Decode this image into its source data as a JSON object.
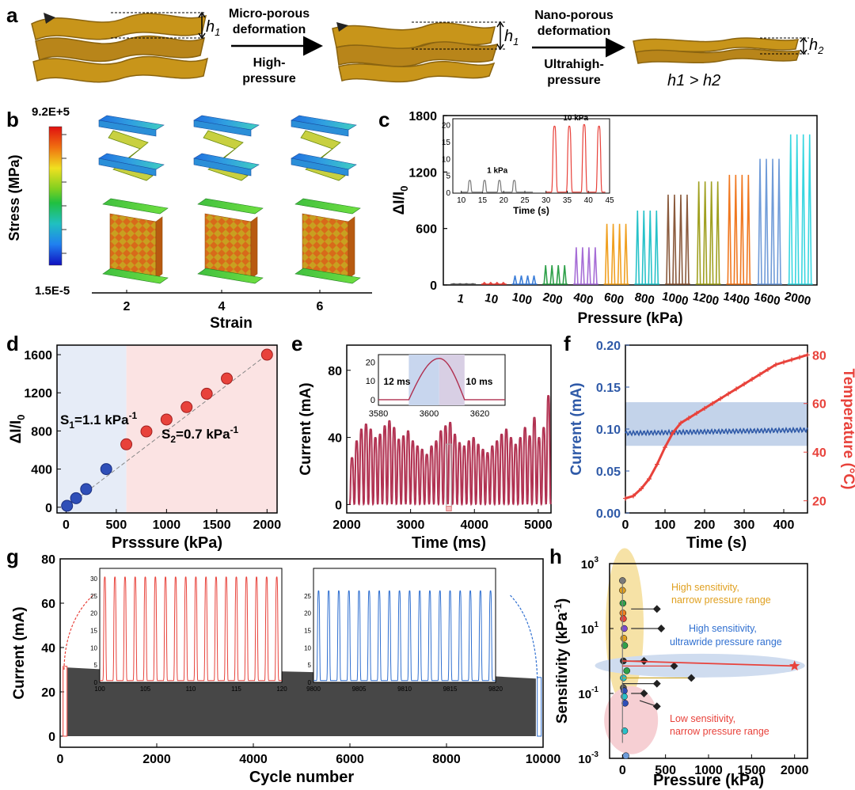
{
  "panel_letters": [
    "a",
    "b",
    "c",
    "d",
    "e",
    "f",
    "g",
    "h"
  ],
  "panel_a": {
    "arrow1_top": "Micro-porous",
    "arrow1_mid": "deformation",
    "arrow1_bottom1": "High-",
    "arrow1_bottom2": "pressure",
    "arrow2_top": "Nano-porous",
    "arrow2_mid": "deformation",
    "arrow2_bottom1": "Ultrahigh-",
    "arrow2_bottom2": "pressure",
    "h1": "h",
    "h1_sub": "1",
    "h2_sub": "2",
    "relation": "h1 > h2",
    "colors": {
      "foam": "#c8951a",
      "foam_dark": "#8a6410"
    }
  },
  "panel_b": {
    "colorbar_max": "9.2E+5",
    "colorbar_min": "1.5E-5",
    "colorbar_label": "Stress (MPa)",
    "strain_ticks": [
      "2",
      "4",
      "6"
    ],
    "xlabel": "Strain"
  },
  "chart_data": [
    {
      "id": "c",
      "type": "bar",
      "title": "",
      "xlabel": "Pressure (kPa)",
      "ylabel": "ΔI/I0",
      "ylim": [
        0,
        1800
      ],
      "yticks": [
        0,
        600,
        1200,
        1800
      ],
      "categories": [
        "1",
        "10",
        "100",
        "200",
        "400",
        "600",
        "800",
        "1000",
        "1200",
        "1400",
        "1600",
        "2000"
      ],
      "values": [
        13,
        25,
        100,
        210,
        400,
        650,
        790,
        960,
        1100,
        1170,
        1340,
        1600
      ],
      "series_colors": [
        "#555555",
        "#e8423b",
        "#3d7fd9",
        "#2fa14a",
        "#a66dd6",
        "#f0a020",
        "#27c2c9",
        "#8a5a3c",
        "#a0a020",
        "#f07820",
        "#6f9bd8",
        "#38d6e0"
      ],
      "inset": {
        "xlabel": "Time (s)",
        "xlim": [
          8,
          45
        ],
        "ylim": [
          0,
          22
        ],
        "xticks": [
          10,
          15,
          20,
          25,
          30,
          35,
          40,
          45
        ],
        "yticks": [
          0,
          5,
          10,
          15,
          20
        ],
        "label_1kpa": "1 kPa",
        "label_10kpa": "10 kPa",
        "peaks_1kpa": [
          12,
          15.5,
          19,
          22.5
        ],
        "peak_value_1kpa": 3.5,
        "peaks_10kpa": [
          32,
          35.5,
          39,
          42.5
        ],
        "peak_values_10kpa": [
          19.5,
          19.5,
          20,
          19.5
        ]
      }
    },
    {
      "id": "d",
      "type": "scatter",
      "xlabel": "Prsssure (kPa)",
      "ylabel": "ΔI/I0",
      "xlim": [
        -90,
        2100
      ],
      "ylim": [
        -60,
        1700
      ],
      "xticks": [
        0,
        500,
        1000,
        1500,
        2000
      ],
      "yticks": [
        0,
        400,
        800,
        1200,
        1600
      ],
      "low_region_end": 600,
      "low_points": {
        "x": [
          10,
          100,
          200,
          400
        ],
        "y": [
          15,
          95,
          190,
          400
        ]
      },
      "high_points": {
        "x": [
          600,
          800,
          1000,
          1200,
          1400,
          1600,
          2000
        ],
        "y": [
          660,
          795,
          920,
          1050,
          1190,
          1350,
          1600
        ]
      },
      "s1_text": "S",
      "s1_sub": "1",
      "s1_value": "=1.1 kPa",
      "s1_sup": "-1",
      "s2_text": "S",
      "s2_sub": "2",
      "s2_value": "=0.7 kPa",
      "s2_sup": "-1"
    },
    {
      "id": "e",
      "type": "line",
      "xlabel": "Time (ms)",
      "ylabel": "Current (mA)",
      "xlim": [
        2000,
        5200
      ],
      "ylim": [
        -5,
        95
      ],
      "xticks": [
        2000,
        3000,
        4000,
        5000
      ],
      "yticks": [
        0,
        40,
        80
      ],
      "pulse_heights": [
        28,
        38,
        45,
        48,
        45,
        40,
        42,
        47,
        50,
        46,
        39,
        41,
        44,
        38,
        35,
        33,
        30,
        35,
        38,
        44,
        47,
        49,
        42,
        37,
        35,
        38,
        40,
        36,
        33,
        31,
        35,
        38,
        42,
        45,
        40,
        36,
        40,
        46,
        41,
        52,
        40,
        46,
        65
      ],
      "inset": {
        "xlim": [
          3580,
          3630
        ],
        "ylim": [
          -3,
          24
        ],
        "xticks": [
          3580,
          3600,
          3620
        ],
        "yticks": [
          0,
          10,
          20
        ],
        "rise_label": "12 ms",
        "fall_label": "10 ms"
      }
    },
    {
      "id": "f",
      "type": "line",
      "xlabel": "Time (s)",
      "ylabel_left": "Current (mA)",
      "ylabel_right": "Temperature (°C)",
      "xlim": [
        0,
        460
      ],
      "ylim_left": [
        0,
        0.2
      ],
      "ylim_right": [
        15,
        84
      ],
      "xticks": [
        0,
        100,
        200,
        300,
        400
      ],
      "yticks_left": [
        0.0,
        0.05,
        0.1,
        0.15,
        0.2
      ],
      "yticks_left_labels": [
        "0.00",
        "0.05",
        "0.10",
        "0.15",
        "0.20"
      ],
      "yticks_right": [
        20,
        40,
        60,
        80
      ],
      "current_band": [
        0.08,
        0.132
      ],
      "current_level": 0.095,
      "temperature_curve": {
        "x": [
          0,
          20,
          40,
          60,
          80,
          100,
          120,
          140,
          160,
          180,
          200,
          220,
          240,
          260,
          280,
          300,
          320,
          340,
          360,
          380,
          400,
          420,
          440,
          460
        ],
        "y": [
          21,
          22,
          25,
          29,
          35,
          42,
          48,
          52,
          54,
          56,
          58,
          60,
          62,
          64,
          66,
          68,
          70,
          72,
          74,
          76,
          77,
          78,
          79,
          80
        ]
      },
      "left_color": "#2f5aa8",
      "right_color": "#e8423b"
    },
    {
      "id": "g",
      "type": "area",
      "xlabel": "Cycle number",
      "ylabel": "Current (mA)",
      "xlim": [
        0,
        10000
      ],
      "ylim": [
        -5,
        80
      ],
      "xticks": [
        0,
        2000,
        4000,
        6000,
        8000,
        10000
      ],
      "yticks": [
        0,
        20,
        40,
        60,
        80
      ],
      "envelope": {
        "x": [
          0,
          1000,
          2000,
          3000,
          4000,
          5000,
          6000,
          7000,
          8000,
          9000,
          10000
        ],
        "y": [
          31,
          30,
          30,
          29.5,
          29.5,
          29,
          28.5,
          28,
          27.5,
          27,
          26
        ]
      },
      "inset_left": {
        "xlim": [
          100,
          120
        ],
        "xticks": [
          100,
          105,
          110,
          115,
          120
        ],
        "yticks": [
          0,
          5,
          10,
          15,
          20,
          25,
          30
        ],
        "peak": 30,
        "pulses": 18
      },
      "inset_right": {
        "xlim": [
          9800,
          9820
        ],
        "xticks": [
          9800,
          9805,
          9810,
          9815,
          9820
        ],
        "yticks": [
          0,
          5,
          10,
          15,
          20,
          25
        ],
        "peak": 26,
        "pulses": 18
      }
    },
    {
      "id": "h",
      "type": "scatter",
      "xlabel": "Pressure (kPa)",
      "ylabel": "Sensitivity (kPa-1)",
      "xlim": [
        -150,
        2150
      ],
      "ylim_log10": [
        -3,
        3
      ],
      "xticks": [
        0,
        500,
        1000,
        1500,
        2000
      ],
      "ytick_labels": [
        "10",
        "10",
        "10",
        "10"
      ],
      "ytick_exps": [
        "3",
        "1",
        "-1",
        "-3"
      ],
      "region_high_narrow": "High sensitivity,",
      "region_high_narrow_2": "narrow pressure range",
      "region_high_wide": "High sensitivity,",
      "region_high_wide_2": "ultrawride pressure range",
      "region_low": "Low sensitivity,",
      "region_low_2": "narrow  pressure range",
      "this_work": {
        "x": [
          0,
          2000
        ],
        "y": [
          1.0,
          0.7
        ]
      }
    }
  ]
}
